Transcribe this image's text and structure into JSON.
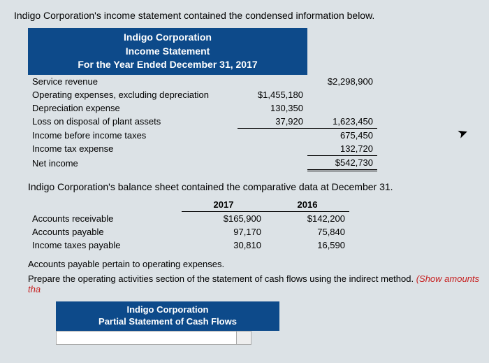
{
  "intro": "Indigo Corporation's income statement contained the condensed information below.",
  "header": {
    "company": "Indigo Corporation",
    "title": "Income Statement",
    "period": "For the Year Ended December 31, 2017"
  },
  "income_statement": {
    "rows": {
      "service_revenue": {
        "label": "Service revenue",
        "a": "",
        "b": "$2,298,900"
      },
      "operating_expenses": {
        "label": "Operating expenses, excluding depreciation",
        "a": "$1,455,180",
        "b": ""
      },
      "depreciation_expense": {
        "label": "Depreciation expense",
        "a": "130,350",
        "b": ""
      },
      "loss_on_disposal": {
        "label": "Loss on disposal of plant assets",
        "a": "37,920",
        "b": "1,623,450"
      },
      "income_before_tax": {
        "label": "Income before income taxes",
        "a": "",
        "b": "675,450"
      },
      "income_tax_expense": {
        "label": "Income tax expense",
        "a": "",
        "b": "132,720"
      },
      "net_income": {
        "label": "Net income",
        "a": "",
        "b": "$542,730"
      }
    }
  },
  "mid_text": "Indigo Corporation's balance sheet contained the comparative data at December 31.",
  "balance_sheet": {
    "col1": "2017",
    "col2": "2016",
    "rows": {
      "ar": {
        "label": "Accounts receivable",
        "v1": "$165,900",
        "v2": "$142,200"
      },
      "ap": {
        "label": "Accounts payable",
        "v1": "97,170",
        "v2": "75,840"
      },
      "itp": {
        "label": "Income taxes payable",
        "v1": "30,810",
        "v2": "16,590"
      }
    }
  },
  "note": "Accounts payable pertain to operating expenses.",
  "instruction": {
    "main": "Prepare the operating activities section of the statement of cash flows using the indirect method. ",
    "red": "(Show amounts tha"
  },
  "header2": {
    "company": "Indigo Corporation",
    "title": "Partial Statement of Cash Flows"
  }
}
